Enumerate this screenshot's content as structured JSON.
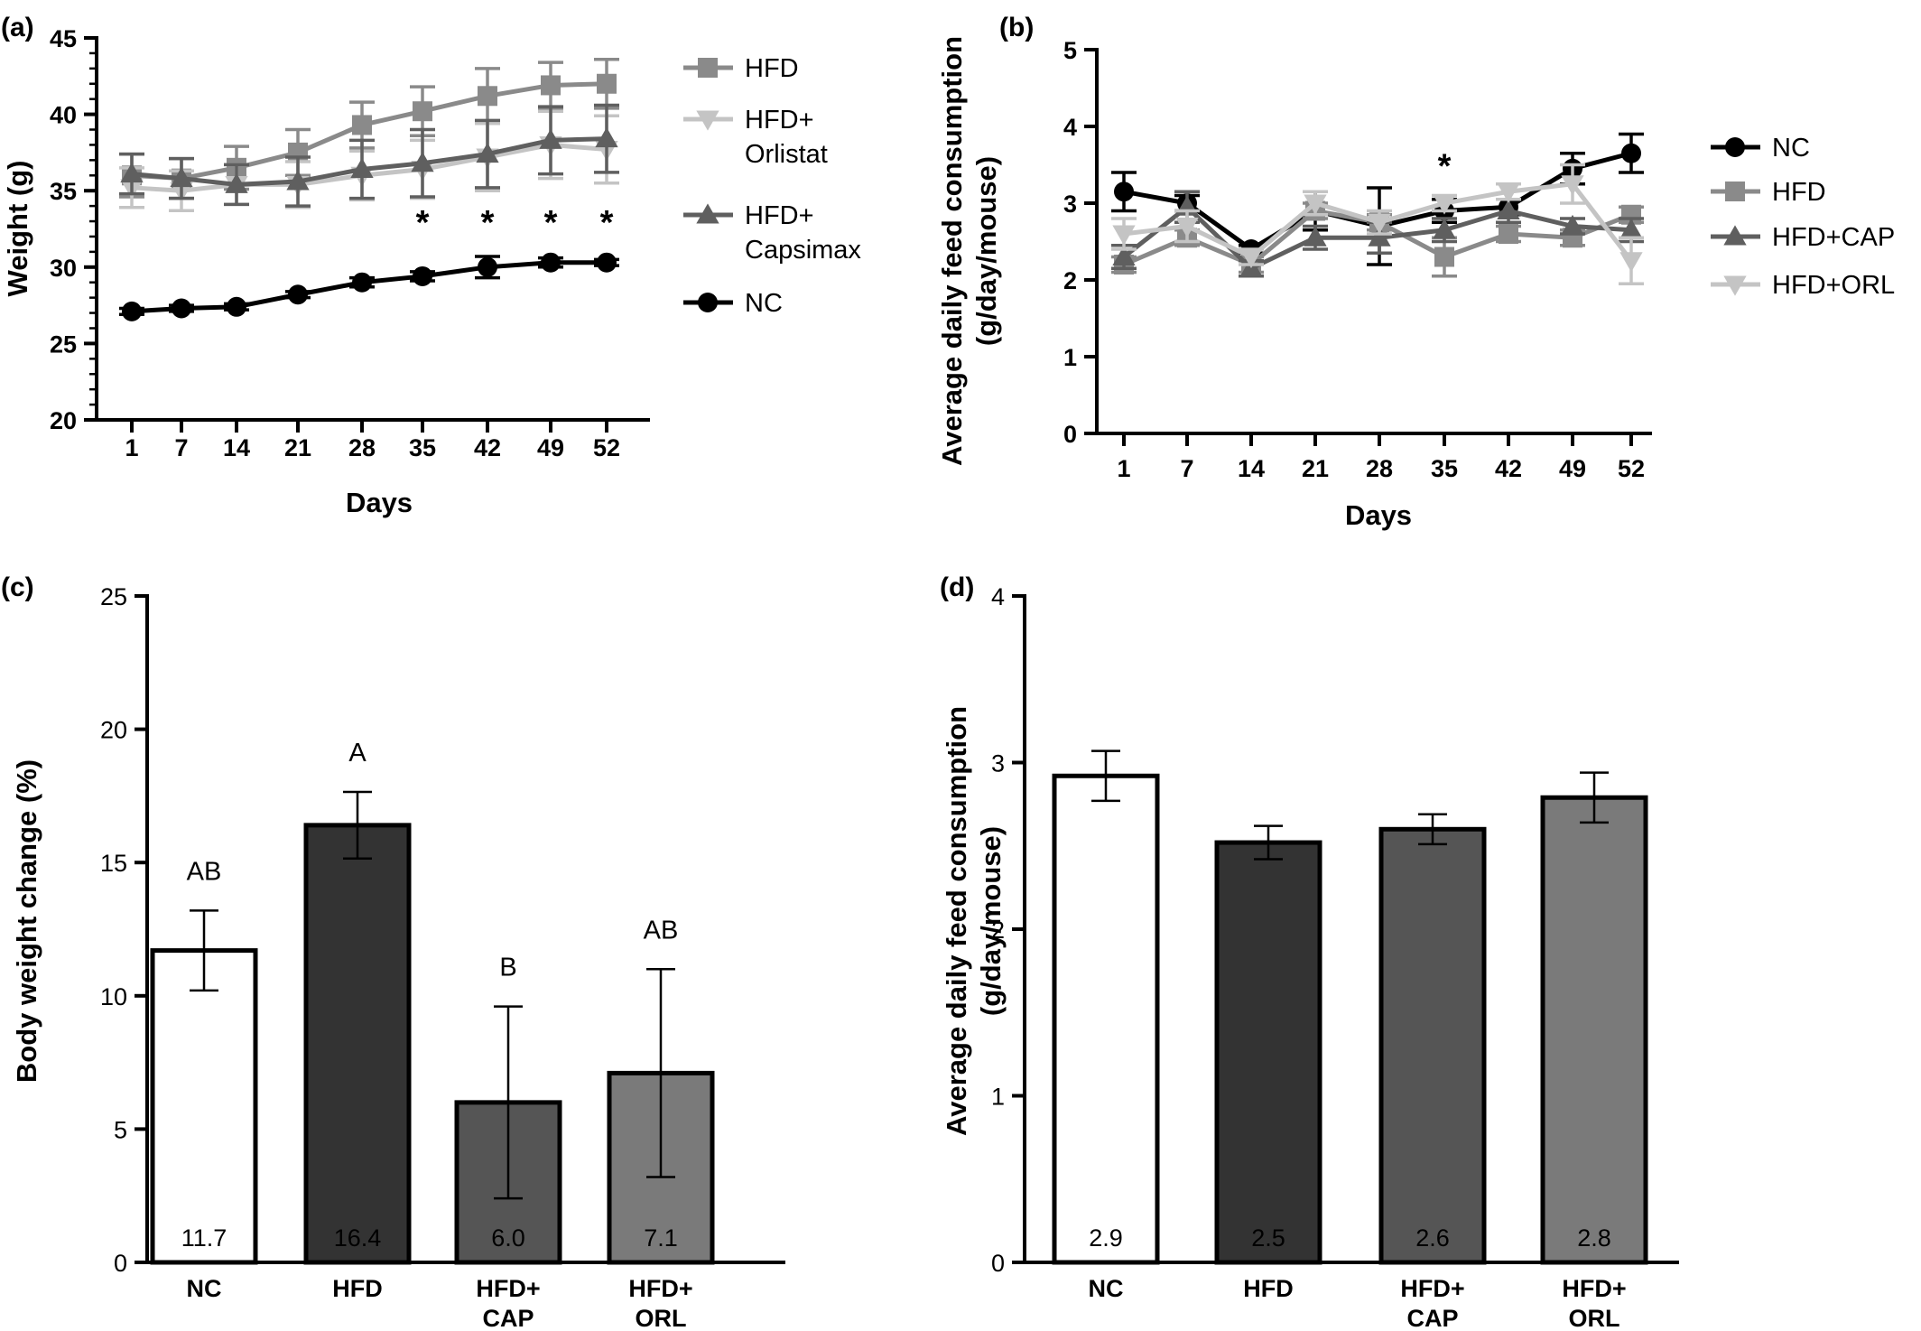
{
  "chart_data": [
    {
      "panel": "(a)",
      "type": "line",
      "xlabel": "Days",
      "ylabel": "Weight (g)",
      "categories": [
        "1",
        "7",
        "14",
        "21",
        "28",
        "35",
        "42",
        "49",
        "52"
      ],
      "ylim": [
        20,
        45
      ],
      "yticks": [
        "20",
        "25",
        "30",
        "35",
        "40",
        "45"
      ],
      "legend_position": "right",
      "series": [
        {
          "name": "HFD",
          "marker": "square",
          "color": "#8a8a8a",
          "values": [
            36.0,
            35.8,
            36.5,
            37.5,
            39.3,
            40.2,
            41.2,
            41.9,
            42.0
          ],
          "errors": [
            1.4,
            1.3,
            1.4,
            1.5,
            1.5,
            1.6,
            1.8,
            1.5,
            1.6
          ]
        },
        {
          "name": "HFD+ Orlistat",
          "name_lines": [
            "HFD+",
            "Orlistat"
          ],
          "marker": "triangle-down",
          "color": "#c4c4c4",
          "values": [
            35.2,
            35.0,
            35.4,
            35.4,
            36.0,
            36.4,
            37.2,
            38.0,
            37.7
          ],
          "errors": [
            1.3,
            1.3,
            1.3,
            1.5,
            1.6,
            1.9,
            2.2,
            2.2,
            2.2
          ]
        },
        {
          "name": "HFD+ Capsimax",
          "name_lines": [
            "HFD+",
            "Capsimax"
          ],
          "marker": "triangle-up",
          "color": "#5f5f5f",
          "values": [
            36.1,
            35.8,
            35.4,
            35.6,
            36.4,
            36.8,
            37.4,
            38.3,
            38.4
          ],
          "errors": [
            1.3,
            1.3,
            1.3,
            1.6,
            1.9,
            2.2,
            2.2,
            2.2,
            2.2
          ]
        },
        {
          "name": "NC",
          "marker": "circle",
          "color": "#000000",
          "values": [
            27.1,
            27.3,
            27.4,
            28.2,
            29.0,
            29.4,
            30.0,
            30.3,
            30.3
          ],
          "errors": [
            0.2,
            0.2,
            0.2,
            0.2,
            0.3,
            0.3,
            0.7,
            0.3,
            0.2
          ]
        }
      ],
      "annotations": [
        {
          "text": "*",
          "x": "35",
          "y": 33.0
        },
        {
          "text": "*",
          "x": "42",
          "y": 33.0
        },
        {
          "text": "*",
          "x": "49",
          "y": 33.0
        },
        {
          "text": "*",
          "x": "52",
          "y": 33.0
        }
      ]
    },
    {
      "panel": "(b)",
      "type": "line",
      "xlabel": "Days",
      "ylabel": [
        "Average daily  feed consumption",
        "(g/day/mouse)"
      ],
      "categories": [
        "1",
        "7",
        "14",
        "21",
        "28",
        "35",
        "42",
        "49",
        "52"
      ],
      "ylim": [
        0,
        5
      ],
      "yticks": [
        "0",
        "1",
        "2",
        "3",
        "4",
        "5"
      ],
      "legend_position": "right",
      "series": [
        {
          "name": "NC",
          "marker": "circle",
          "color": "#000000",
          "values": [
            3.15,
            3.0,
            2.4,
            2.9,
            2.7,
            2.9,
            2.95,
            3.45,
            3.65
          ],
          "errors": [
            0.25,
            0.1,
            0.05,
            0.25,
            0.5,
            0.15,
            0.1,
            0.2,
            0.25
          ]
        },
        {
          "name": "HFD",
          "marker": "square",
          "color": "#8a8a8a",
          "values": [
            2.2,
            2.55,
            2.2,
            2.9,
            2.75,
            2.3,
            2.6,
            2.55,
            2.85
          ],
          "errors": [
            0.1,
            0.1,
            0.1,
            0.1,
            0.1,
            0.25,
            0.1,
            0.1,
            0.1
          ]
        },
        {
          "name": "HFD+CAP",
          "marker": "triangle-up",
          "color": "#5f5f5f",
          "values": [
            2.3,
            2.95,
            2.15,
            2.55,
            2.55,
            2.65,
            2.9,
            2.7,
            2.65
          ],
          "errors": [
            0.15,
            0.2,
            0.1,
            0.15,
            0.2,
            0.15,
            0.15,
            0.1,
            0.15
          ]
        },
        {
          "name": "HFD+ORL",
          "marker": "triangle-down",
          "color": "#c4c4c4",
          "values": [
            2.6,
            2.7,
            2.3,
            3.0,
            2.75,
            3.0,
            3.15,
            3.25,
            2.25
          ],
          "errors": [
            0.2,
            0.2,
            0.1,
            0.15,
            0.15,
            0.1,
            0.1,
            0.25,
            0.3
          ]
        }
      ],
      "annotations": [
        {
          "text": "*",
          "x": "35",
          "y": 3.5
        }
      ]
    },
    {
      "panel": "(c)",
      "type": "bar",
      "ylabel": "Body weight  change (%)",
      "categories": [
        "NC",
        "HFD",
        "HFD+ CAP",
        "HFD+ ORL"
      ],
      "category_lines": [
        [
          "NC"
        ],
        [
          "HFD"
        ],
        [
          "HFD+",
          "CAP"
        ],
        [
          "HFD+",
          "ORL"
        ]
      ],
      "ylim": [
        0,
        25
      ],
      "yticks": [
        "0",
        "5",
        "10",
        "15",
        "20",
        "25"
      ],
      "values": [
        11.7,
        16.4,
        6.0,
        7.1
      ],
      "value_labels": [
        "11.7",
        "16.4",
        "6.0",
        "7.1"
      ],
      "errors": [
        1.5,
        1.25,
        3.6,
        3.9
      ],
      "colors": [
        "#ffffff",
        "#333333",
        "#555555",
        "#7a7a7a"
      ],
      "label_colors": [
        "#000000",
        "#ffffff",
        "#000000",
        "#000000"
      ],
      "significance": [
        "AB",
        "A",
        "B",
        "AB"
      ]
    },
    {
      "panel": "(d)",
      "type": "bar",
      "ylabel": [
        "Average daily  feed consumption",
        "(g/day/mouse)"
      ],
      "categories": [
        "NC",
        "HFD",
        "HFD+ CAP",
        "HFD+ ORL"
      ],
      "category_lines": [
        [
          "NC"
        ],
        [
          "HFD"
        ],
        [
          "HFD+",
          "CAP"
        ],
        [
          "HFD+",
          "ORL"
        ]
      ],
      "ylim": [
        0,
        4
      ],
      "yticks": [
        "0",
        "1",
        "2",
        "3",
        "4"
      ],
      "values": [
        2.92,
        2.52,
        2.6,
        2.79
      ],
      "value_labels": [
        "2.9",
        "2.5",
        "2.6",
        "2.8"
      ],
      "errors": [
        0.15,
        0.1,
        0.09,
        0.15
      ],
      "colors": [
        "#ffffff",
        "#333333",
        "#555555",
        "#7a7a7a"
      ],
      "label_colors": [
        "#000000",
        "#ffffff",
        "#000000",
        "#000000"
      ]
    }
  ]
}
